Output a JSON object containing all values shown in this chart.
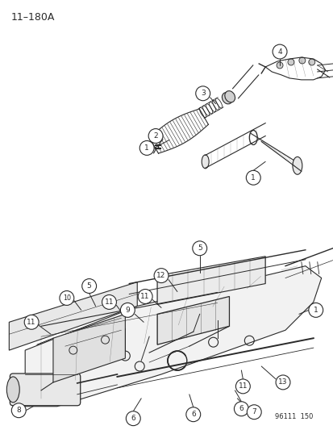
{
  "title": "11–180A",
  "doc_number": "96111  150",
  "background_color": "#ffffff",
  "line_color": "#2a2a2a",
  "figsize": [
    4.14,
    5.33
  ],
  "dpi": 100
}
